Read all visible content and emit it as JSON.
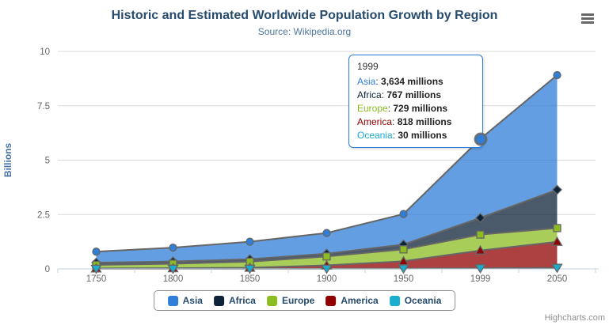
{
  "title": "Historic and Estimated Worldwide Population Growth by Region",
  "subtitle": "Source: Wikipedia.org",
  "credits": "Highcharts.com",
  "chart_data": {
    "type": "area",
    "stacked": true,
    "title": "Historic and Estimated Worldwide Population Growth by Region",
    "subtitle": "Source: Wikipedia.org",
    "categories": [
      "1750",
      "1800",
      "1850",
      "1900",
      "1950",
      "1999",
      "2050"
    ],
    "series": [
      {
        "name": "Asia",
        "color": "#2f7ed8",
        "marker": "circle",
        "values": [
          502,
          635,
          809,
          947,
          1402,
          3634,
          5268
        ]
      },
      {
        "name": "Africa",
        "color": "#0d233a",
        "marker": "diamond",
        "values": [
          106,
          107,
          111,
          133,
          221,
          767,
          1766
        ]
      },
      {
        "name": "Europe",
        "color": "#8bbc21",
        "marker": "square",
        "values": [
          163,
          203,
          276,
          408,
          547,
          729,
          628
        ]
      },
      {
        "name": "America",
        "color": "#910000",
        "marker": "triangle",
        "values": [
          18,
          31,
          54,
          156,
          339,
          818,
          1201
        ]
      },
      {
        "name": "Oceania",
        "color": "#1aadce",
        "marker": "triangle-down",
        "values": [
          2,
          2,
          2,
          6,
          13,
          30,
          46
        ]
      }
    ],
    "values_unit": "millions",
    "xlabel": "",
    "ylabel": "Billions",
    "yticks": [
      0,
      2.5,
      5,
      7.5,
      10
    ],
    "ylim": [
      0,
      10
    ],
    "grid": true,
    "legend_position": "bottom",
    "hover_point": {
      "series": "Asia",
      "category": "1999",
      "category_index": 5
    }
  },
  "tooltip": {
    "header": "1999",
    "border_color": "#2f7ed8",
    "rows": [
      {
        "name": "Asia",
        "color": "#2f7ed8",
        "value": "3,634 millions"
      },
      {
        "name": "Africa",
        "color": "#0d233a",
        "value": "767 millions"
      },
      {
        "name": "Europe",
        "color": "#8bbc21",
        "value": "729 millions"
      },
      {
        "name": "America",
        "color": "#910000",
        "value": "818 millions"
      },
      {
        "name": "Oceania",
        "color": "#1aadce",
        "value": "30 millions"
      }
    ]
  },
  "legend": {
    "items": [
      {
        "label": "Asia",
        "color": "#2f7ed8"
      },
      {
        "label": "Africa",
        "color": "#0d233a"
      },
      {
        "label": "Europe",
        "color": "#8bbc21"
      },
      {
        "label": "America",
        "color": "#910000"
      },
      {
        "label": "Oceania",
        "color": "#1aadce"
      }
    ]
  },
  "colors": {
    "title": "#274b6d",
    "subtitle": "#4d759e",
    "axis_label": "#666666",
    "axis_title": "#4572a7",
    "axis_line": "#c0d0e0",
    "gridline": "#d8d8d8",
    "series_line": "#666666"
  }
}
